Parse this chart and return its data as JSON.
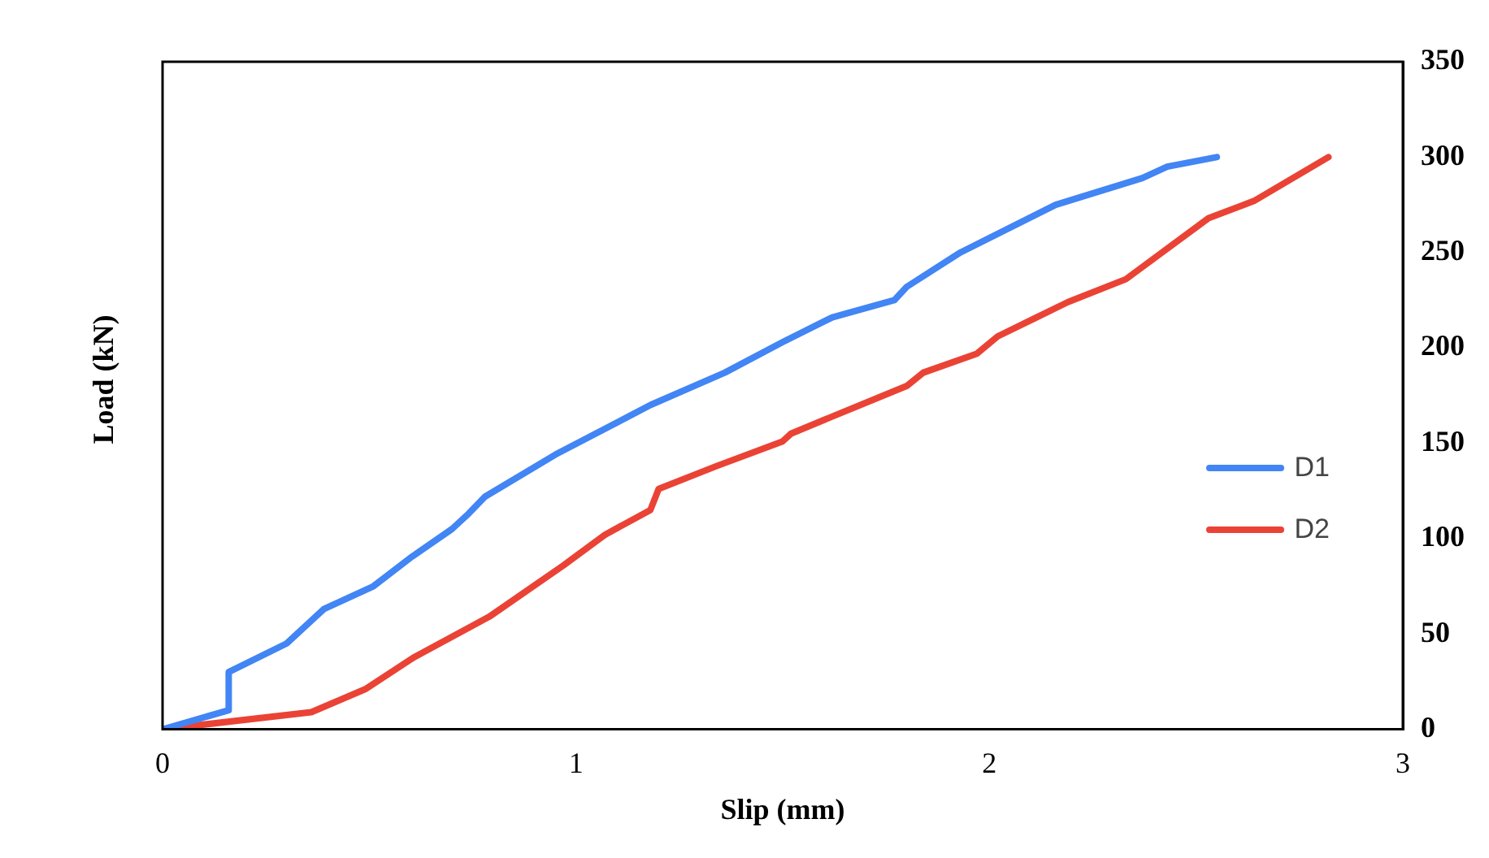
{
  "chart_data": {
    "type": "line",
    "xlabel": "Slip (mm)",
    "ylabel": "Load (kN)",
    "xlim": [
      0,
      3
    ],
    "xticks": [
      0,
      1,
      2,
      3
    ],
    "ylim": [
      0,
      350
    ],
    "yticks": [
      0,
      50,
      100,
      150,
      200,
      250,
      300,
      350
    ],
    "grid": false,
    "legend": "right",
    "marker": "none",
    "line_style": "solid",
    "series": [
      {
        "name": "D1",
        "color": "#4285f4",
        "x": [
          0,
          0.16,
          0.16,
          0.3,
          0.39,
          0.51,
          0.6,
          0.7,
          0.74,
          0.78,
          0.95,
          1.18,
          1.36,
          1.5,
          1.62,
          1.77,
          1.8,
          1.93,
          2.16,
          2.37,
          2.43,
          2.55
        ],
        "values": [
          0,
          10,
          30,
          45,
          63,
          75,
          90,
          105,
          113,
          122,
          144,
          170,
          187,
          203,
          216,
          225,
          232,
          250,
          275,
          289,
          295,
          300
        ]
      },
      {
        "name": "D2",
        "color": "#ea4335",
        "x": [
          0,
          0.36,
          0.49,
          0.61,
          0.79,
          0.97,
          1.07,
          1.18,
          1.2,
          1.34,
          1.5,
          1.52,
          1.62,
          1.8,
          1.84,
          1.97,
          2.02,
          2.19,
          2.33,
          2.53,
          2.64,
          2.82
        ],
        "values": [
          0,
          9,
          21,
          38,
          59,
          86,
          102,
          115,
          126,
          138,
          151,
          155,
          164,
          180,
          187,
          197,
          206,
          224,
          236,
          268,
          277,
          300
        ]
      }
    ]
  }
}
